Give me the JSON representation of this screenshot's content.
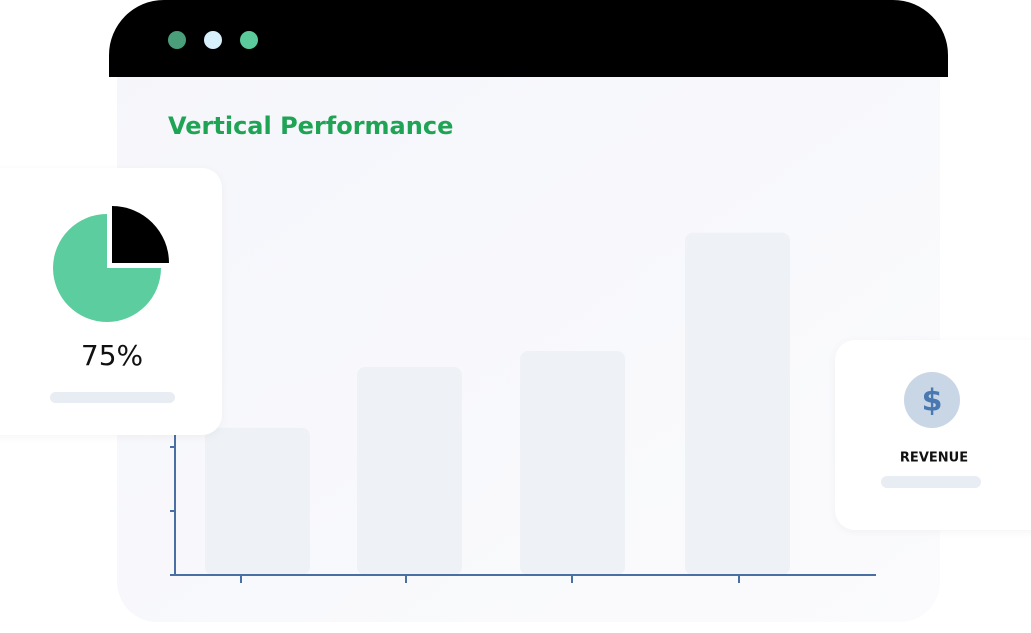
{
  "chart_data": {
    "type": "bar",
    "title": "Vertical Performance",
    "categories": [
      null,
      null,
      null,
      null
    ],
    "values": [
      2.3,
      3.25,
      3.5,
      5.35
    ],
    "color": "#eef1f5",
    "ylim": [
      0,
      6
    ],
    "yticks": [
      1,
      2,
      3,
      4,
      5
    ]
  },
  "pie_card": {
    "value": 75,
    "value_label": "75%",
    "color": "#5ccd9f"
  },
  "revenue_card": {
    "icon": "$",
    "label": "REVENUE"
  }
}
